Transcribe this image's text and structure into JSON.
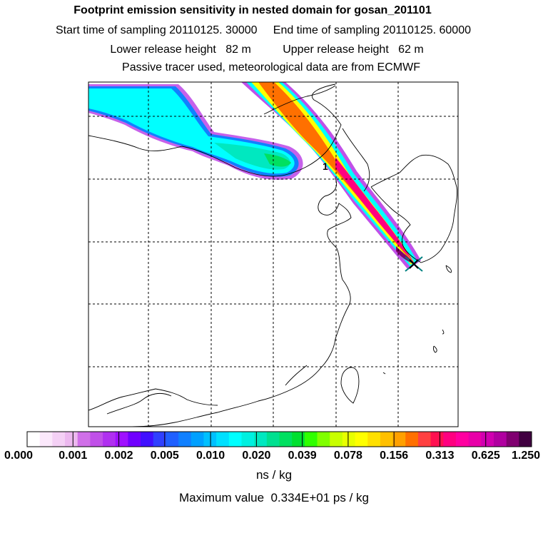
{
  "header": {
    "title": "Footprint emission sensitivity in nested domain for gosan_201101",
    "sampling": "Start time of sampling 20110125. 30000     End time of sampling 20110125. 60000",
    "release": "Lower release height   82 m          Upper release height   62 m",
    "tracer": "Passive tracer used, meteorological data are from ECMWF"
  },
  "map": {
    "label": "1",
    "marker_icon": "x-cross-marker-icon"
  },
  "chart_data": {
    "type": "heatmap",
    "title": "Footprint emission sensitivity in nested domain for gosan_201101",
    "colorbar": {
      "ticks": [
        "0.000",
        "0.001",
        "0.002",
        "0.005",
        "0.010",
        "0.020",
        "0.039",
        "0.078",
        "0.156",
        "0.313",
        "0.625",
        "1.250"
      ],
      "units": "ns / kg",
      "colors": [
        "#ffffff",
        "#fbe8fb",
        "#f4d0f5",
        "#ecb8ef",
        "#d070e8",
        "#c050e8",
        "#b030f0",
        "#9f10ff",
        "#7000ff",
        "#4010ff",
        "#3040ff",
        "#2060ff",
        "#1080ff",
        "#00a0ff",
        "#00c0ff",
        "#00e0ff",
        "#00ffff",
        "#00f0e0",
        "#00e8c0",
        "#00e090",
        "#00e060",
        "#00e030",
        "#30ff00",
        "#80ff00",
        "#c8ff00",
        "#e8ff00",
        "#ffff00",
        "#ffe000",
        "#ffc000",
        "#ffa000",
        "#ff7000",
        "#ff4040",
        "#ff1050",
        "#ff0080",
        "#ff00a0",
        "#e800a8",
        "#d000b0",
        "#b000a0",
        "#800070",
        "#400040"
      ]
    },
    "maximum": "Maximum value  0.334E+01 ps / kg"
  }
}
